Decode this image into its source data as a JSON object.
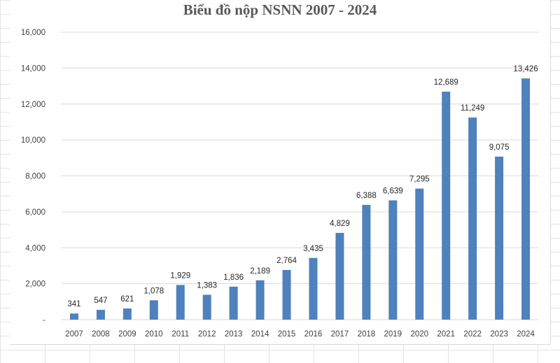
{
  "chart_data": {
    "type": "bar",
    "title": "Biểu đồ nộp NSNN 2007 - 2024",
    "xlabel": "",
    "ylabel": "",
    "categories": [
      "2007",
      "2008",
      "2009",
      "2010",
      "2011",
      "2012",
      "2013",
      "2014",
      "2015",
      "2016",
      "2017",
      "2018",
      "2019",
      "2020",
      "2021",
      "2022",
      "2023",
      "2024"
    ],
    "values": [
      341,
      547,
      621,
      1078,
      1929,
      1383,
      1836,
      2189,
      2764,
      3435,
      4829,
      6388,
      6639,
      7295,
      12689,
      11249,
      9075,
      13426
    ],
    "data_labels": [
      "341",
      "547",
      "621",
      "1,078",
      "1,929",
      "1,383",
      "1,836",
      "2,189",
      "2,764",
      "3,435",
      "4,829",
      "6,388",
      "6,639",
      "7,295",
      "12,689",
      "11,249",
      "9,075",
      "13,426"
    ],
    "ylim": [
      0,
      16000
    ],
    "yticks": [
      0,
      2000,
      4000,
      6000,
      8000,
      10000,
      12000,
      14000,
      16000
    ],
    "ytick_labels": [
      "-",
      "2,000",
      "4,000",
      "6,000",
      "8,000",
      "10,000",
      "12,000",
      "14,000",
      "16,000"
    ],
    "grid": true,
    "legend": "none",
    "bar_color": "#4f81bd",
    "grid_color": "#d9d9d9"
  }
}
